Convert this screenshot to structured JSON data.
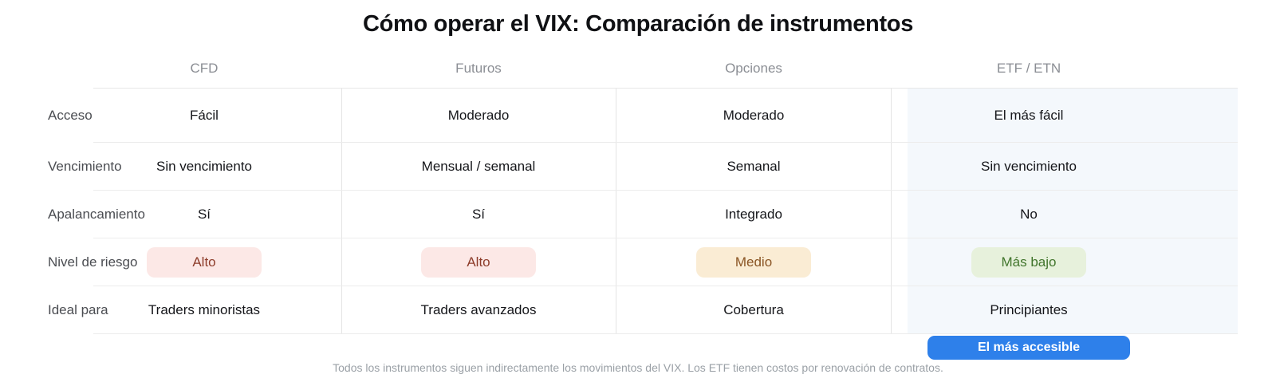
{
  "chart_data": {
    "type": "table",
    "title": "Cómo operar el VIX: Comparación de instrumentos",
    "columns": [
      "",
      "CFD",
      "Futuros",
      "Opciones",
      "ETF / ETN"
    ],
    "rows": [
      [
        "Acceso",
        "Fácil",
        "Moderado",
        "Moderado",
        "El más fácil"
      ],
      [
        "Vencimiento",
        "Sin vencimiento",
        "Mensual / semanal",
        "Semanal",
        "Sin vencimiento"
      ],
      [
        "Apalancamiento",
        "Sí",
        "Sí",
        "Integrado",
        "No"
      ],
      [
        "Nivel de riesgo",
        "Alto",
        "Alto",
        "Medio",
        "Más bajo"
      ],
      [
        "Ideal para",
        "Traders minoristas",
        "Traders avanzados",
        "Cobertura",
        "Principiantes"
      ]
    ],
    "highlighted_column": "ETF / ETN",
    "legend_position": "none",
    "grid": true
  },
  "risk_badges": [
    {
      "text": "Alto",
      "bg": "#fce8e6",
      "color": "#8d3c2a"
    },
    {
      "text": "Alto",
      "bg": "#fce8e6",
      "color": "#8d3c2a"
    },
    {
      "text": "Medio",
      "bg": "#faecd4",
      "color": "#8a5524"
    },
    {
      "text": "Más bajo",
      "bg": "#e7f1dc",
      "color": "#41752c"
    }
  ],
  "highlight": {
    "column": "ETF / ETN",
    "bg": "#f4f8fc"
  },
  "callout": {
    "label": "El más accesible",
    "bg": "#2e80ea",
    "color": "#ffffff"
  },
  "footnote": "Todos los instrumentos siguen indirectamente los movimientos del VIX. Los ETF tienen costos por renovación de contratos."
}
